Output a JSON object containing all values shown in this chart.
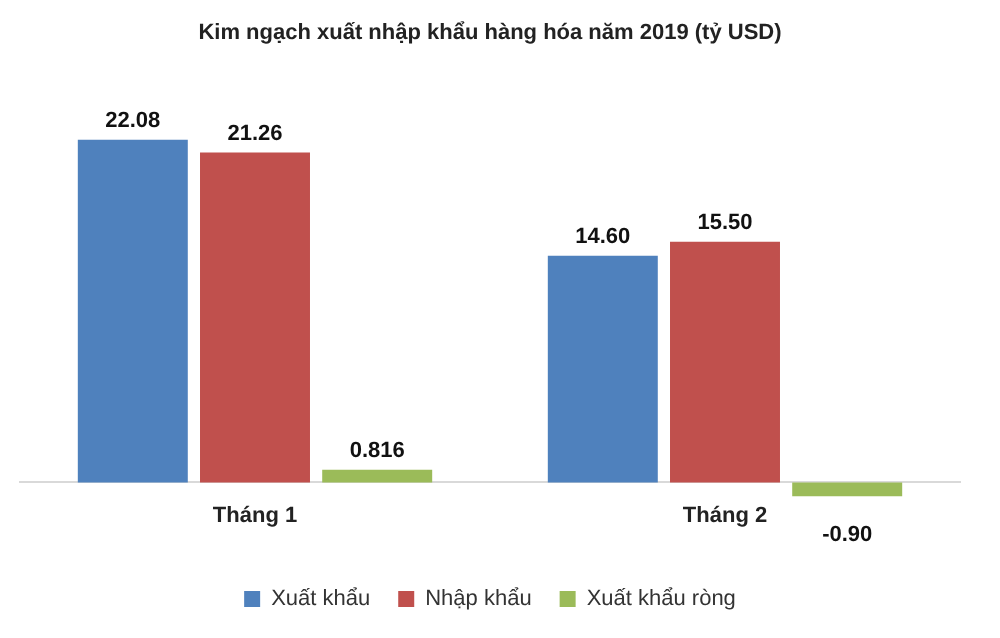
{
  "chart_data": {
    "type": "bar",
    "title": "Kim ngạch xuất nhập khẩu hàng hóa năm 2019 (tỷ USD)",
    "categories": [
      "Tháng 1",
      "Tháng 2"
    ],
    "series": [
      {
        "name": "Xuất khẩu",
        "color": "#4f81bd",
        "values": [
          22.08,
          14.6
        ],
        "value_labels": [
          "22.08",
          "14.60"
        ]
      },
      {
        "name": "Nhập khẩu",
        "color": "#c0504d",
        "values": [
          21.26,
          15.5
        ],
        "value_labels": [
          "21.26",
          "15.50"
        ]
      },
      {
        "name": "Xuất khẩu ròng",
        "color": "#9bbb59",
        "values": [
          0.816,
          -0.9
        ],
        "value_labels": [
          "0.816",
          "-0.90"
        ]
      }
    ],
    "legend": "bottom",
    "grid": false
  }
}
